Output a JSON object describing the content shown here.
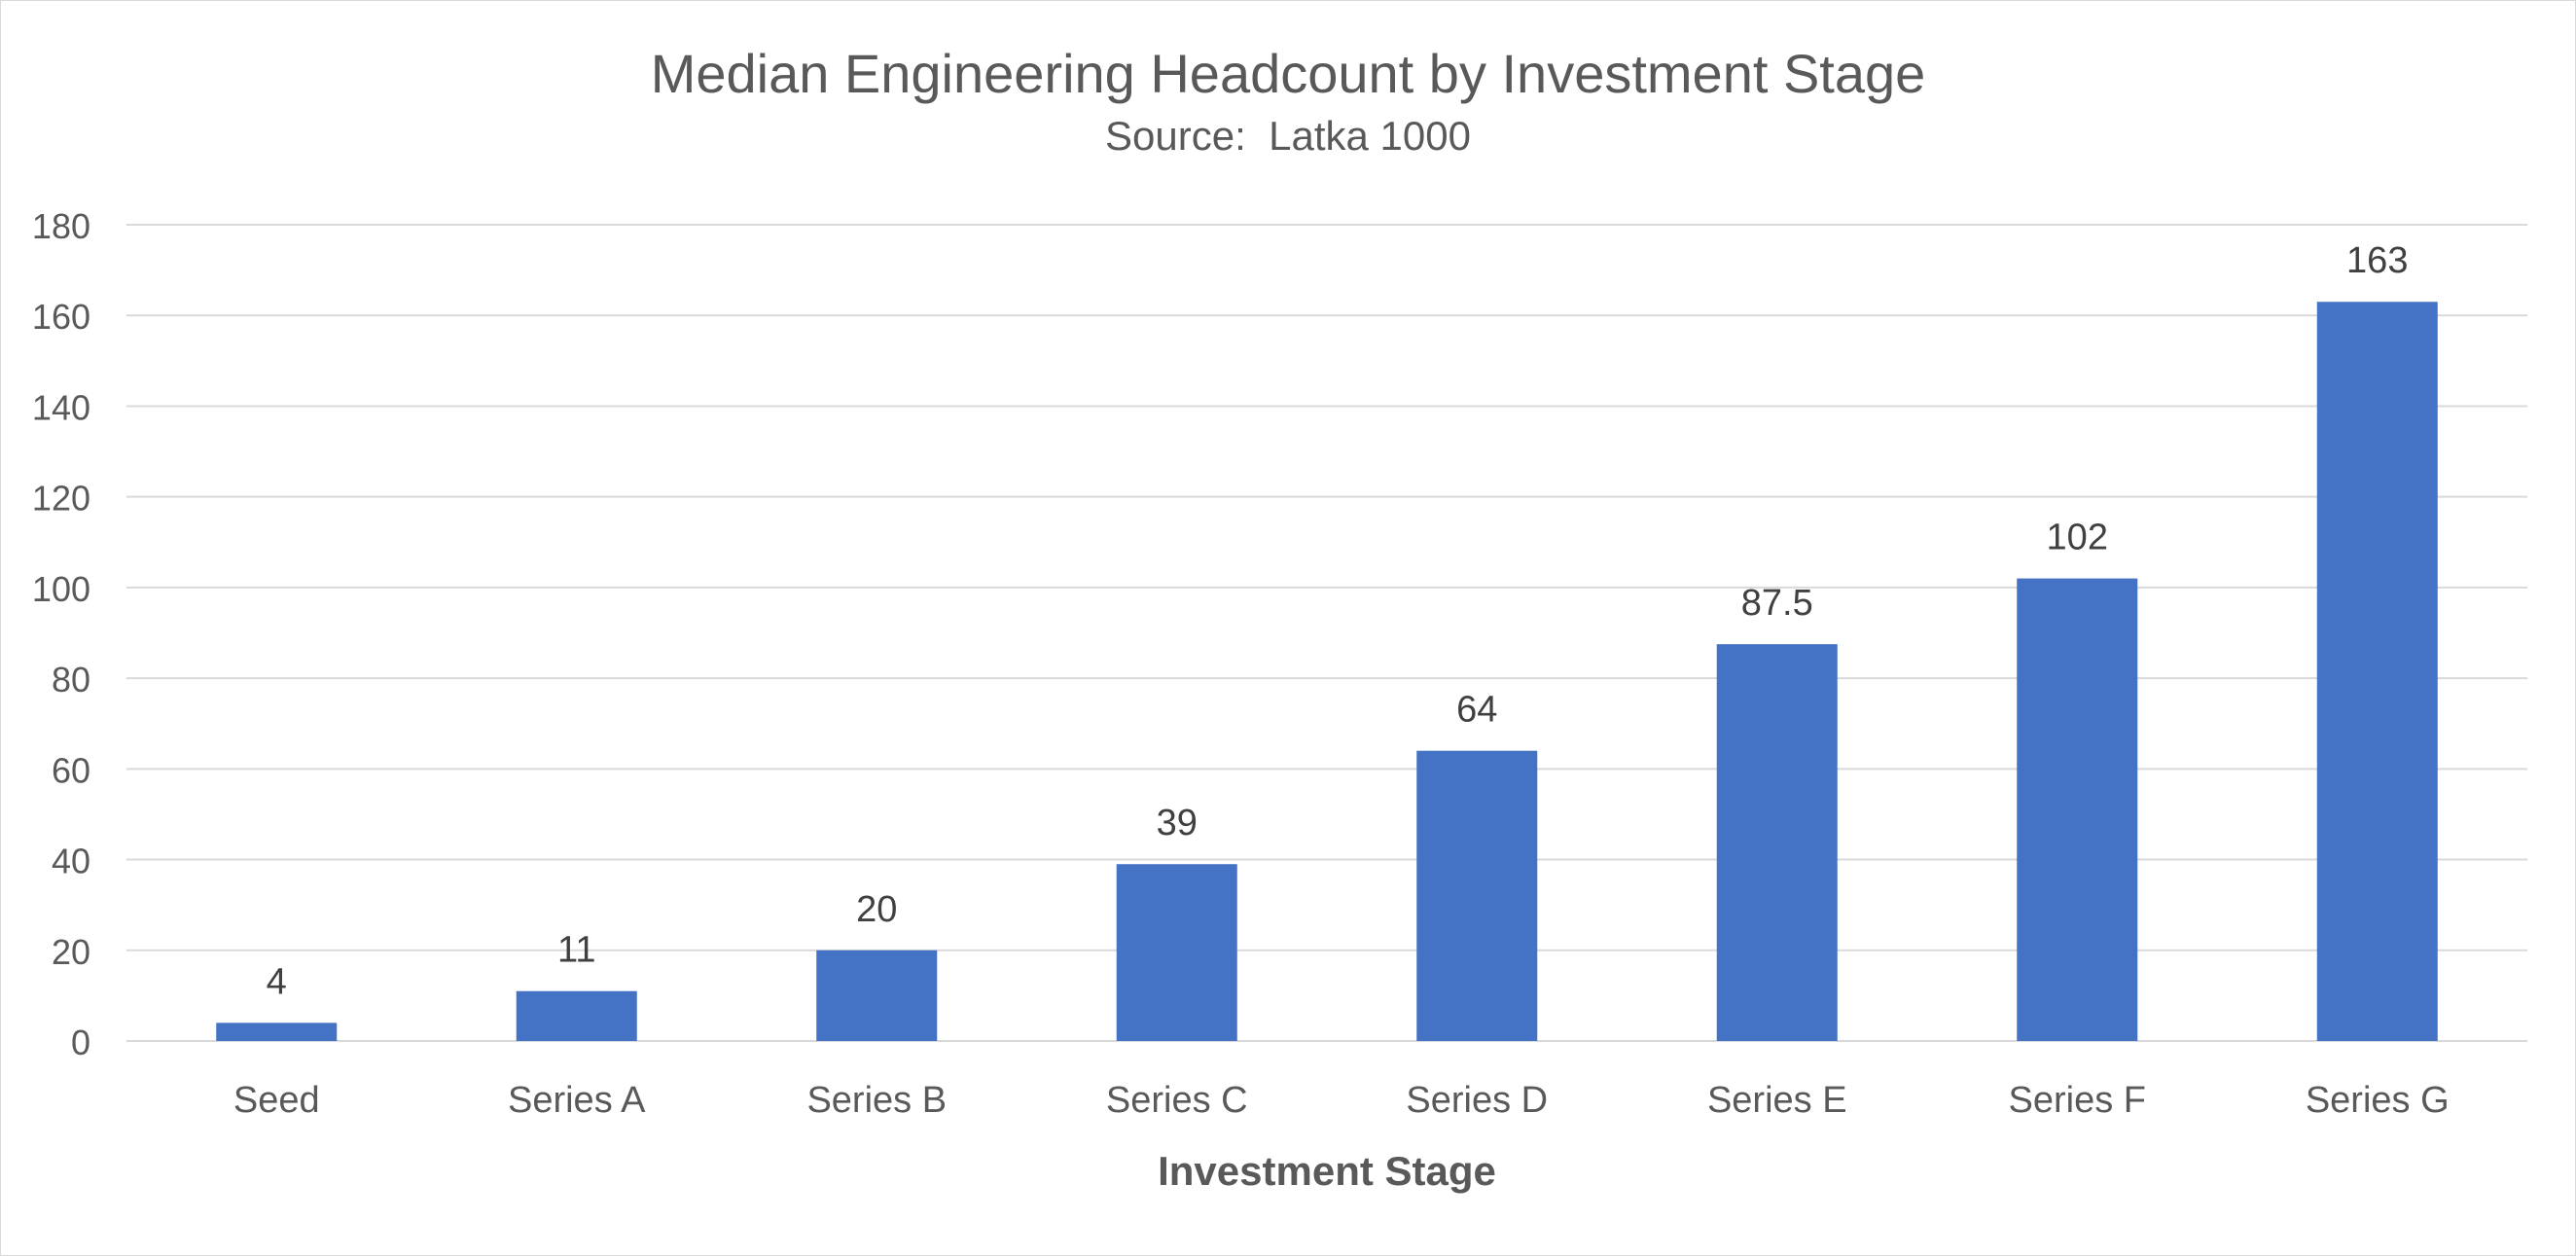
{
  "chart_data": {
    "type": "bar",
    "title": "Median Engineering Headcount by Investment Stage",
    "subtitle": "Source:  Latka 1000",
    "xlabel": "Investment Stage",
    "ylabel": "",
    "categories": [
      "Seed",
      "Series A",
      "Series B",
      "Series C",
      "Series D",
      "Series E",
      "Series F",
      "Series G"
    ],
    "values": [
      4,
      11,
      20,
      39,
      64,
      87.5,
      102,
      163
    ],
    "data_labels": [
      "4",
      "11",
      "20",
      "39",
      "64",
      "87.5",
      "102",
      "163"
    ],
    "ylim": [
      0,
      180
    ],
    "yticks": [
      0,
      20,
      40,
      60,
      80,
      100,
      120,
      140,
      160,
      180
    ],
    "grid": true,
    "legend": "none",
    "colors": {
      "bar": "#4472C4",
      "grid": "#d9d9d9",
      "text": "#595959",
      "data_label": "#404040"
    }
  }
}
